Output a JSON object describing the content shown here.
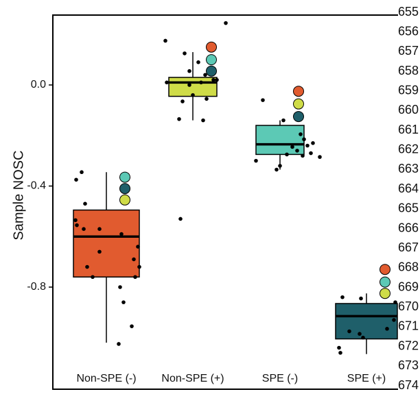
{
  "chart_data": {
    "type": "box",
    "ylabel": "Sample NOSC",
    "yticks": [
      0.0,
      -0.4,
      -0.8
    ],
    "ytick_labels": [
      "0.0",
      "-0.4",
      "-0.8"
    ],
    "ylim": [
      -1.1,
      0.28
    ],
    "categories": [
      "Non-SPE (-)",
      "Non-SPE (+)",
      "SPE (-)",
      "SPE (+)"
    ],
    "boxes": [
      {
        "category": "Non-SPE (-)",
        "color": "#e15b2f",
        "whisker_low": -1.02,
        "q1": -0.76,
        "median": -0.6,
        "q3": -0.495,
        "whisker_high": -0.345,
        "points": [
          [
            -0.36,
            -0.345
          ],
          [
            -0.44,
            -0.375
          ],
          [
            -0.31,
            -0.47
          ],
          [
            -0.45,
            -0.535
          ],
          [
            -0.43,
            -0.555
          ],
          [
            -0.33,
            -0.57
          ],
          [
            -0.1,
            -0.57
          ],
          [
            0.22,
            -0.59
          ],
          [
            0.46,
            -0.64
          ],
          [
            -0.1,
            -0.66
          ],
          [
            0.4,
            -0.69
          ],
          [
            -0.28,
            -0.72
          ],
          [
            0.48,
            -0.72
          ],
          [
            0.42,
            -0.76
          ],
          [
            -0.2,
            -0.76
          ],
          [
            0.2,
            -0.8
          ],
          [
            0.25,
            -0.86
          ],
          [
            0.37,
            -0.955
          ],
          [
            0.18,
            -1.025
          ]
        ],
        "markers": [
          {
            "y": -0.365,
            "color": "#5cc9b5"
          },
          {
            "y": -0.41,
            "color": "#1f5f6a"
          },
          {
            "y": -0.455,
            "color": "#cfdc48"
          }
        ]
      },
      {
        "category": "Non-SPE (+)",
        "color": "#cfdc48",
        "whisker_low": -0.14,
        "q1": -0.045,
        "median": 0.01,
        "q3": 0.03,
        "whisker_high": 0.13,
        "points": [
          [
            -0.4,
            0.175
          ],
          [
            -0.12,
            0.125
          ],
          [
            0.48,
            0.245
          ],
          [
            0.08,
            0.09
          ],
          [
            -0.05,
            0.055
          ],
          [
            0.18,
            0.04
          ],
          [
            0.3,
            0.02
          ],
          [
            0.12,
            0.01
          ],
          [
            -0.38,
            0.01
          ],
          [
            -0.05,
            0.0
          ],
          [
            0.35,
            0.02
          ],
          [
            0.0,
            -0.04
          ],
          [
            0.2,
            -0.055
          ],
          [
            -0.15,
            -0.065
          ],
          [
            -0.2,
            -0.135
          ],
          [
            0.15,
            -0.14
          ],
          [
            -0.18,
            -0.53
          ]
        ],
        "markers": [
          {
            "y": 0.15,
            "color": "#e15b2f"
          },
          {
            "y": 0.1,
            "color": "#5cc9b5"
          },
          {
            "y": 0.055,
            "color": "#1f5f6a"
          }
        ]
      },
      {
        "category": "SPE (-)",
        "color": "#5cc9b5",
        "whisker_low": -0.335,
        "q1": -0.275,
        "median": -0.235,
        "q3": -0.16,
        "whisker_high": -0.14,
        "points": [
          [
            -0.25,
            -0.06
          ],
          [
            0.05,
            -0.14
          ],
          [
            0.3,
            -0.195
          ],
          [
            0.35,
            -0.215
          ],
          [
            0.48,
            -0.23
          ],
          [
            0.4,
            -0.24
          ],
          [
            0.18,
            -0.245
          ],
          [
            0.25,
            -0.26
          ],
          [
            0.45,
            -0.27
          ],
          [
            0.1,
            -0.275
          ],
          [
            0.33,
            -0.28
          ],
          [
            0.58,
            -0.285
          ],
          [
            -0.35,
            -0.3
          ],
          [
            0.0,
            -0.32
          ],
          [
            -0.05,
            -0.335
          ]
        ],
        "markers": [
          {
            "y": -0.025,
            "color": "#e15b2f"
          },
          {
            "y": -0.075,
            "color": "#cfdc48"
          },
          {
            "y": -0.125,
            "color": "#1f5f6a"
          }
        ]
      },
      {
        "category": "SPE (+)",
        "color": "#1f5f6a",
        "whisker_low": -1.065,
        "q1": -1.005,
        "median": -0.915,
        "q3": -0.865,
        "whisker_high": -0.825,
        "points": [
          [
            -0.35,
            -0.84
          ],
          [
            -0.08,
            -0.845
          ],
          [
            0.42,
            -0.86
          ],
          [
            0.4,
            -0.93
          ],
          [
            0.3,
            -0.965
          ],
          [
            -0.25,
            -0.975
          ],
          [
            -0.1,
            -0.985
          ],
          [
            -0.05,
            -1.0
          ],
          [
            -0.4,
            -1.04
          ],
          [
            -0.38,
            -1.06
          ]
        ],
        "markers": [
          {
            "y": -0.73,
            "color": "#e15b2f"
          },
          {
            "y": -0.78,
            "color": "#5cc9b5"
          },
          {
            "y": -0.825,
            "color": "#cfdc48"
          }
        ]
      }
    ],
    "right_margin_numbers": [
      "655",
      "656",
      "657",
      "658",
      "659",
      "660",
      "661",
      "662",
      "663",
      "664",
      "665",
      "666",
      "667",
      "668",
      "669",
      "670",
      "671",
      "672",
      "673",
      "674"
    ],
    "legend": "none",
    "grid": false
  }
}
